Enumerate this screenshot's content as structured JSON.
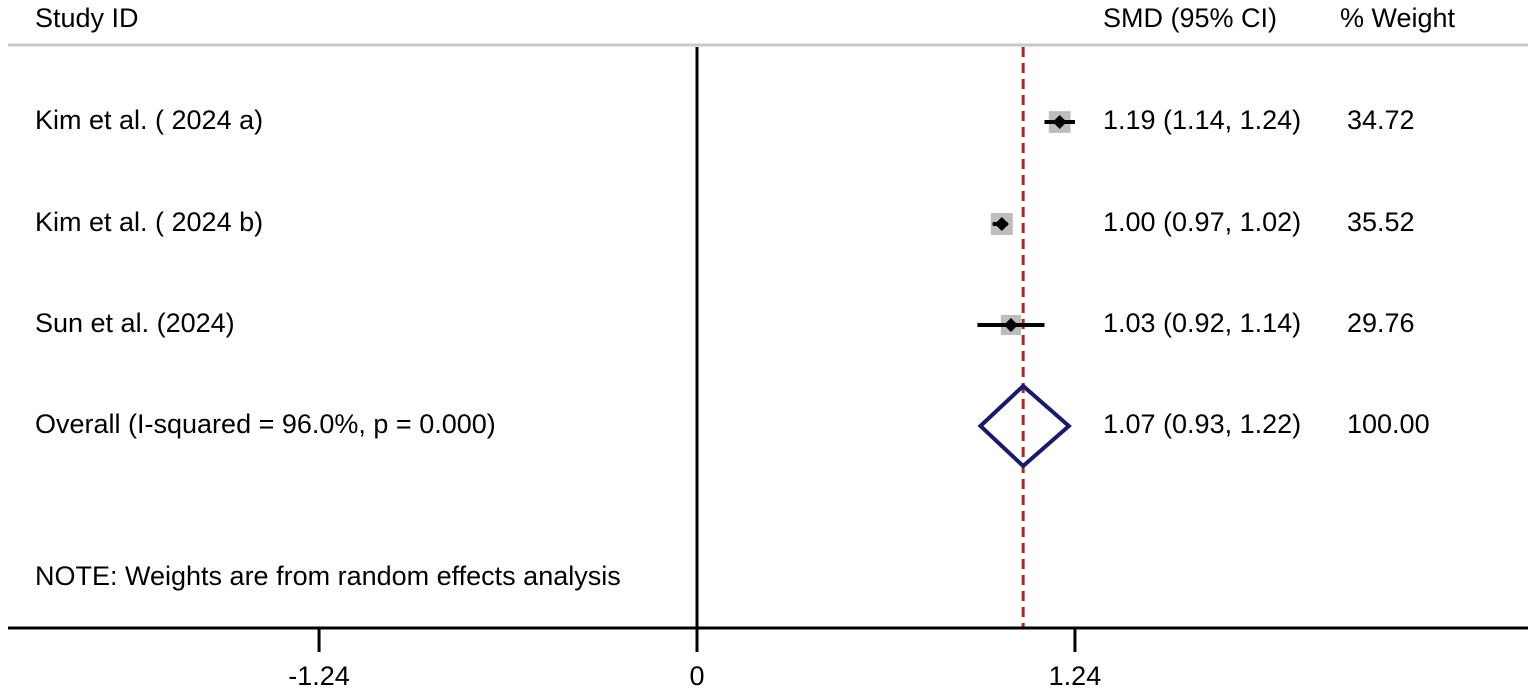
{
  "chart_data": {
    "type": "forest",
    "header": {
      "study_col": "Study  ID",
      "effect_col": "SMD (95% CI)",
      "weight_col": "% Weight"
    },
    "studies": [
      {
        "label": "Kim et al. ( 2024 a)",
        "smd": 1.19,
        "lo": 1.14,
        "hi": 1.24,
        "ci_text": "1.19 (1.14, 1.24)",
        "weight_text": "34.72",
        "weight": 34.72
      },
      {
        "label": "Kim et al. ( 2024 b)",
        "smd": 1.0,
        "lo": 0.97,
        "hi": 1.02,
        "ci_text": "1.00 (0.97, 1.02)",
        "weight_text": "35.52",
        "weight": 35.52
      },
      {
        "label": "Sun et al. (2024)",
        "smd": 1.03,
        "lo": 0.92,
        "hi": 1.14,
        "ci_text": "1.03 (0.92, 1.14)",
        "weight_text": "29.76",
        "weight": 29.76
      }
    ],
    "overall": {
      "label": "Overall  (I-squared = 96.0%, p = 0.000)",
      "smd": 1.07,
      "lo": 0.93,
      "hi": 1.22,
      "ci_text": "1.07 (0.93, 1.22)",
      "weight_text": "100.00"
    },
    "note": "NOTE: Weights are from random effects analysis",
    "x_ticks": [
      {
        "value": -1.24,
        "label": "-1.24"
      },
      {
        "value": 0,
        "label": "0"
      },
      {
        "value": 1.24,
        "label": "1.24"
      }
    ],
    "xlim": [
      -2.25,
      2.72
    ],
    "null_line": 0,
    "colors": {
      "ci": "#000000",
      "weight_box": "#bdbdbd",
      "point": "#000000",
      "diamond": "#1a1a66",
      "overall_line": "#a52a2a",
      "header_rule": "#c8c8c8",
      "axis": "#000000"
    }
  }
}
